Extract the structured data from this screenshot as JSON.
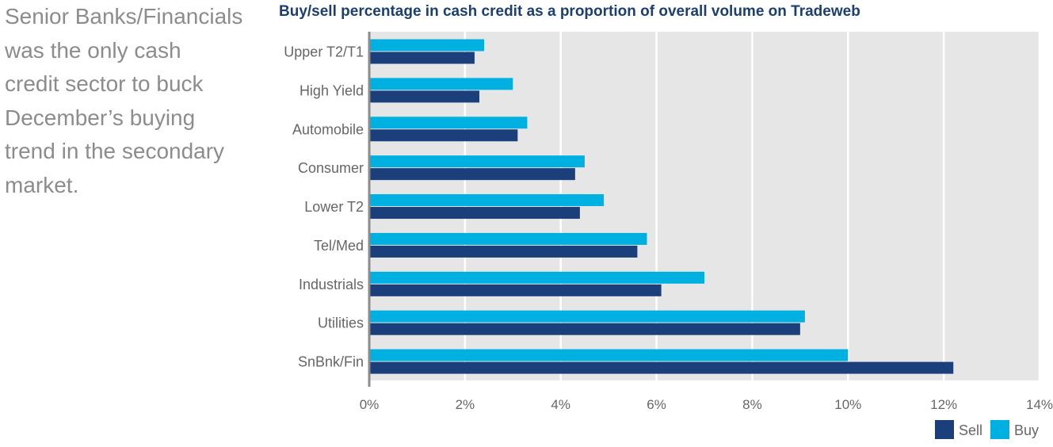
{
  "side_text": "Senior Banks/Financials\nwas the only cash\ncredit sector to buck\nDecember’s buying\ntrend in the secondary\nmarket.",
  "chart_data": {
    "type": "bar",
    "orientation": "horizontal",
    "title": "Buy/sell percentage in cash credit as a proportion of overall volume on Tradeweb",
    "xlabel": "",
    "ylabel": "",
    "categories": [
      "Upper T2/T1",
      "High Yield",
      "Automobile",
      "Consumer",
      "Lower T2",
      "Tel/Med",
      "Industrials",
      "Utilities",
      "SnBnk/Fin"
    ],
    "series": [
      {
        "name": "Sell",
        "color": "#1b3f7a",
        "values": [
          2.2,
          2.3,
          3.1,
          4.3,
          4.4,
          5.6,
          6.1,
          9.0,
          12.2
        ]
      },
      {
        "name": "Buy",
        "color": "#00b0e0",
        "values": [
          2.4,
          3.0,
          3.3,
          4.5,
          4.9,
          5.8,
          7.0,
          9.1,
          10.0
        ]
      }
    ],
    "xlim": [
      0,
      14
    ],
    "x_ticks": [
      "0%",
      "2%",
      "4%",
      "6%",
      "8%",
      "10%",
      "12%",
      "14%"
    ],
    "grid": true,
    "background": "#e6e6e6",
    "legend": "bottom-right"
  }
}
